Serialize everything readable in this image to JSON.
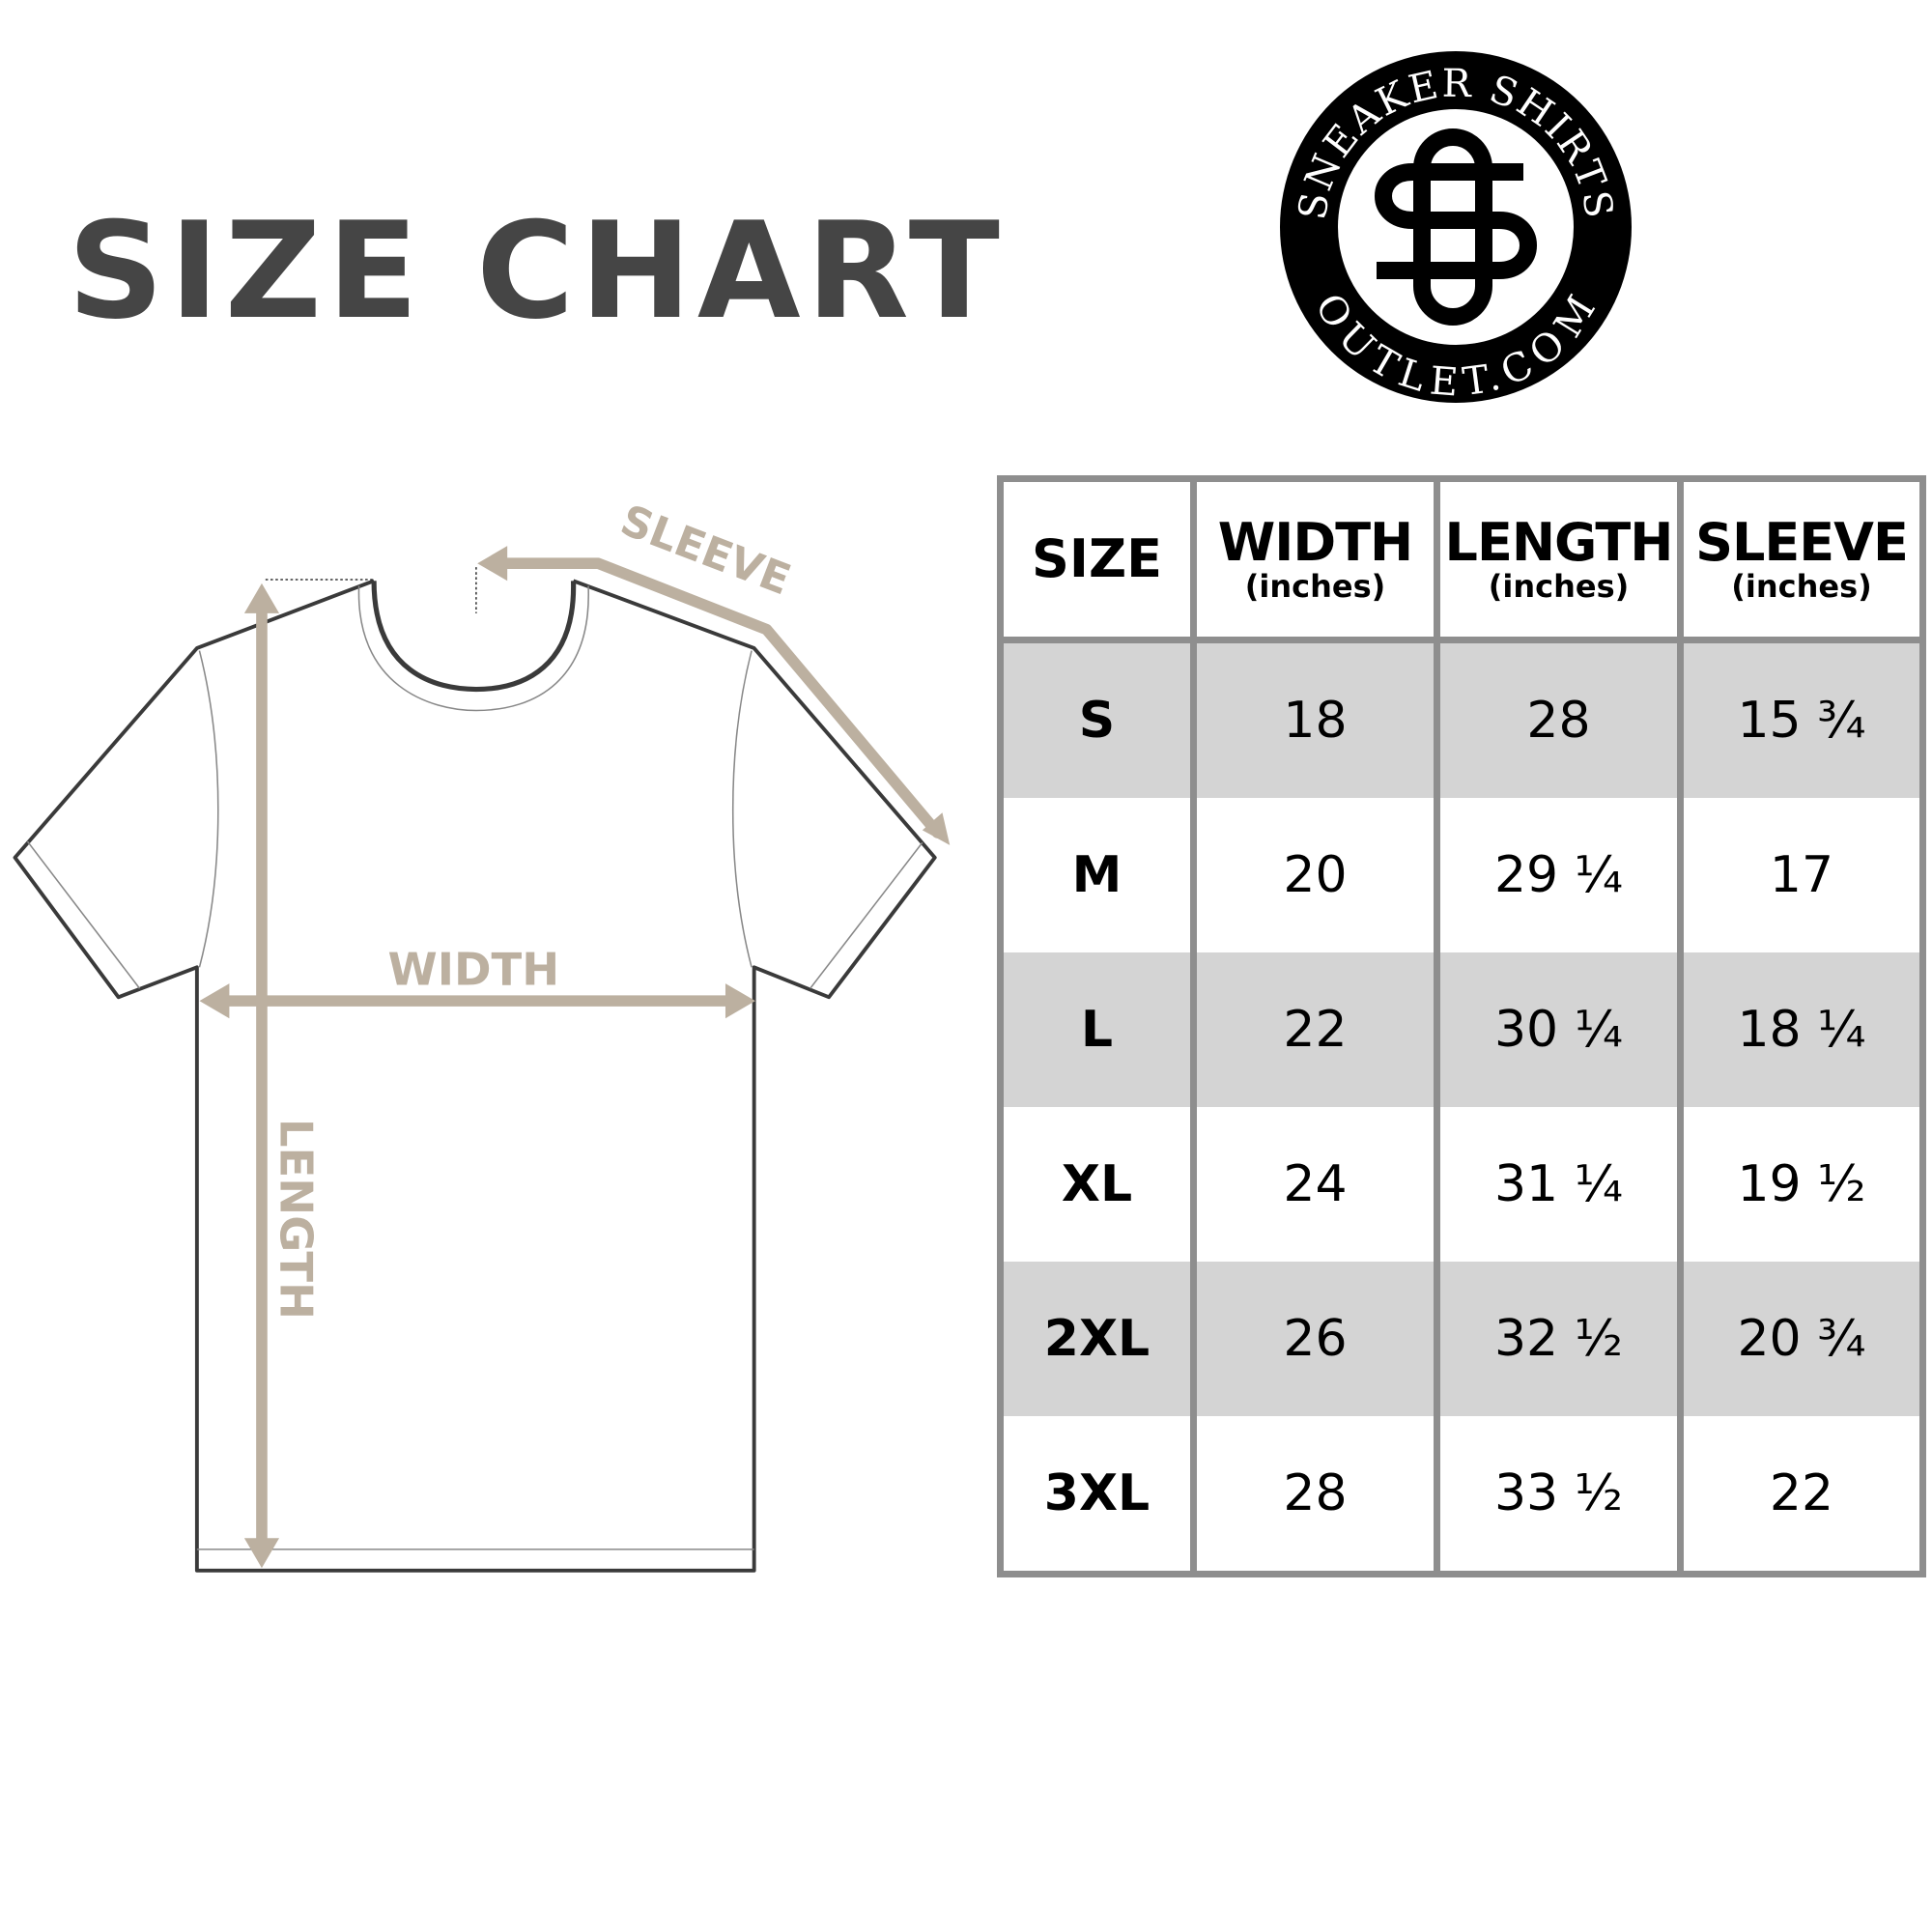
{
  "title": "SIZE CHART",
  "logo": {
    "top_text": "SNEAKER SHIRTS",
    "bottom_text": "OUTLET.COM",
    "monogram": "SO"
  },
  "diagram": {
    "labels": {
      "sleeve": "SLEEVE",
      "width": "WIDTH",
      "length": "LENGTH"
    },
    "arrow_color": "#bcb0a0",
    "outline_color": "#3a3a3a"
  },
  "table": {
    "headers": [
      {
        "label": "SIZE",
        "unit": ""
      },
      {
        "label": "WIDTH",
        "unit": "(inches)"
      },
      {
        "label": "LENGTH",
        "unit": "(inches)"
      },
      {
        "label": "SLEEVE",
        "unit": "(inches)"
      }
    ],
    "rows": [
      [
        "S",
        "18",
        "28",
        "15 ¾"
      ],
      [
        "M",
        "20",
        "29 ¼",
        "17"
      ],
      [
        "L",
        "22",
        "30 ¼",
        "18 ¼"
      ],
      [
        "XL",
        "24",
        "31 ¼",
        "19 ½"
      ],
      [
        "2XL",
        "26",
        "32 ½",
        "20 ¾"
      ],
      [
        "3XL",
        "28",
        "33 ½",
        "22"
      ]
    ],
    "shade_color": "#d4d4d4",
    "border_color": "#8e8e8e"
  }
}
